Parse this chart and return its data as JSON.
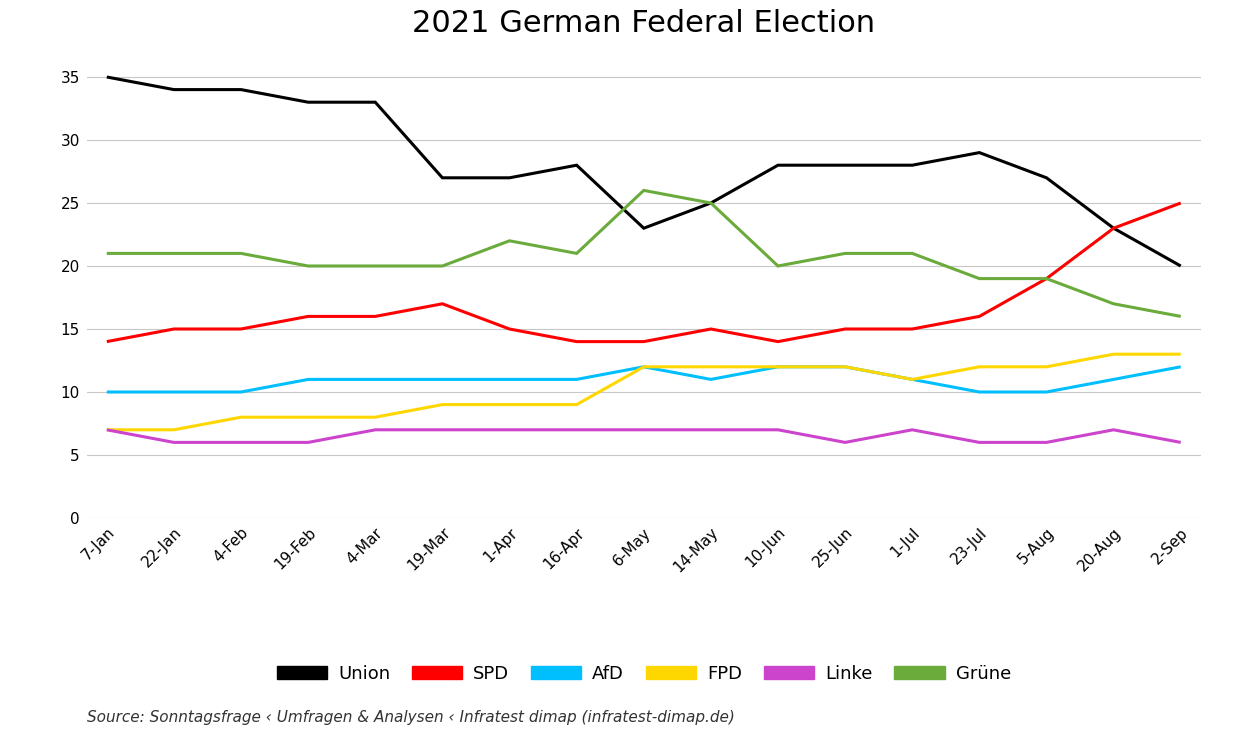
{
  "title": "2021 German Federal Election",
  "source": "Source: Sonntagsfrage ‹ Umfragen & Analysen ‹ Infratest dimap (infratest-dimap.de)",
  "x_labels": [
    "7-Jan",
    "22-Jan",
    "4-Feb",
    "19-Feb",
    "4-Mar",
    "19-Mar",
    "1-Apr",
    "16-Apr",
    "6-May",
    "14-May",
    "10-Jun",
    "25-Jun",
    "1-Jul",
    "23-Jul",
    "5-Aug",
    "20-Aug",
    "2-Sep"
  ],
  "series": [
    {
      "name": "Union",
      "color": "#000000",
      "linewidth": 2.2,
      "values": [
        35,
        34,
        34,
        33,
        33,
        27,
        27,
        28,
        23,
        25,
        28,
        28,
        28,
        29,
        27,
        23,
        20
      ]
    },
    {
      "name": "SPD",
      "color": "#FF0000",
      "linewidth": 2.2,
      "values": [
        14,
        15,
        15,
        16,
        16,
        17,
        15,
        14,
        14,
        15,
        14,
        15,
        15,
        16,
        19,
        23,
        25
      ]
    },
    {
      "name": "AfD",
      "color": "#00BFFF",
      "linewidth": 2.2,
      "values": [
        10,
        10,
        10,
        11,
        11,
        11,
        11,
        11,
        12,
        11,
        12,
        12,
        11,
        10,
        10,
        11,
        12
      ]
    },
    {
      "name": "FPD",
      "color": "#FFD700",
      "linewidth": 2.2,
      "values": [
        7,
        7,
        8,
        8,
        8,
        9,
        9,
        9,
        12,
        12,
        12,
        12,
        11,
        12,
        12,
        13,
        13
      ]
    },
    {
      "name": "Linke",
      "color": "#CC44CC",
      "linewidth": 2.2,
      "values": [
        7,
        6,
        6,
        6,
        7,
        7,
        7,
        7,
        7,
        7,
        7,
        6,
        7,
        6,
        6,
        7,
        6
      ]
    },
    {
      "name": "Grüne",
      "color": "#6AAB3C",
      "linewidth": 2.2,
      "values": [
        21,
        21,
        21,
        20,
        20,
        20,
        22,
        21,
        26,
        25,
        20,
        21,
        21,
        19,
        19,
        17,
        16
      ]
    }
  ],
  "ylim": [
    0,
    37
  ],
  "yticks": [
    0,
    5,
    10,
    15,
    20,
    25,
    30,
    35
  ],
  "background_color": "#FFFFFF",
  "grid_color": "#C8C8C8",
  "title_fontsize": 22,
  "legend_fontsize": 13,
  "tick_fontsize": 11,
  "source_fontsize": 11
}
